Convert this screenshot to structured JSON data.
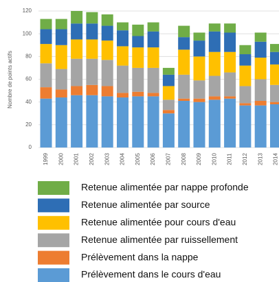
{
  "chart_data": {
    "type": "stacked_bar",
    "y_label": "Nombre de points actifs",
    "categories": [
      "1999",
      "2000",
      "2001",
      "2002",
      "2003",
      "2004",
      "2005",
      "2006",
      "2007",
      "2008",
      "2009",
      "2010",
      "2011",
      "2012",
      "2013",
      "2014"
    ],
    "series": [
      {
        "name": "Prélèvement dans le cours d'eau",
        "color": "#5b9bd5",
        "values": [
          43,
          44,
          46,
          46,
          45,
          44,
          45,
          45,
          30,
          41,
          40,
          42,
          43,
          37,
          37,
          38
        ]
      },
      {
        "name": "Prélèvement dans la nappe",
        "color": "#ed7d31",
        "values": [
          10,
          7,
          8,
          9,
          9,
          4,
          4,
          3,
          3,
          2,
          3,
          3,
          2,
          2,
          4,
          2
        ]
      },
      {
        "name": "Retenue alimentée par ruissellement",
        "color": "#a5a5a5",
        "values": [
          21,
          18,
          24,
          23,
          23,
          24,
          21,
          22,
          9,
          21,
          16,
          18,
          21,
          15,
          19,
          15
        ]
      },
      {
        "name": "Retenue alimentée pour cours d'eau",
        "color": "#ffc000",
        "values": [
          17,
          21,
          17,
          17,
          17,
          17,
          18,
          18,
          12,
          22,
          21,
          21,
          18,
          18,
          19,
          18
        ]
      },
      {
        "name": "Retenue alimentée par source",
        "color": "#2e6eb5",
        "values": [
          13,
          14,
          14,
          14,
          13,
          14,
          10,
          14,
          10,
          11,
          14,
          18,
          17,
          10,
          14,
          11
        ]
      },
      {
        "name": "Retenue alimentée par nappe profonde",
        "color": "#70ad47",
        "values": [
          9,
          9,
          11,
          10,
          10,
          7,
          10,
          8,
          6,
          10,
          7,
          7,
          8,
          8,
          8,
          7
        ]
      }
    ],
    "ylim": [
      0,
      120
    ],
    "yticks": [
      0,
      20,
      40,
      60,
      80,
      100,
      120
    ],
    "grid": true
  }
}
